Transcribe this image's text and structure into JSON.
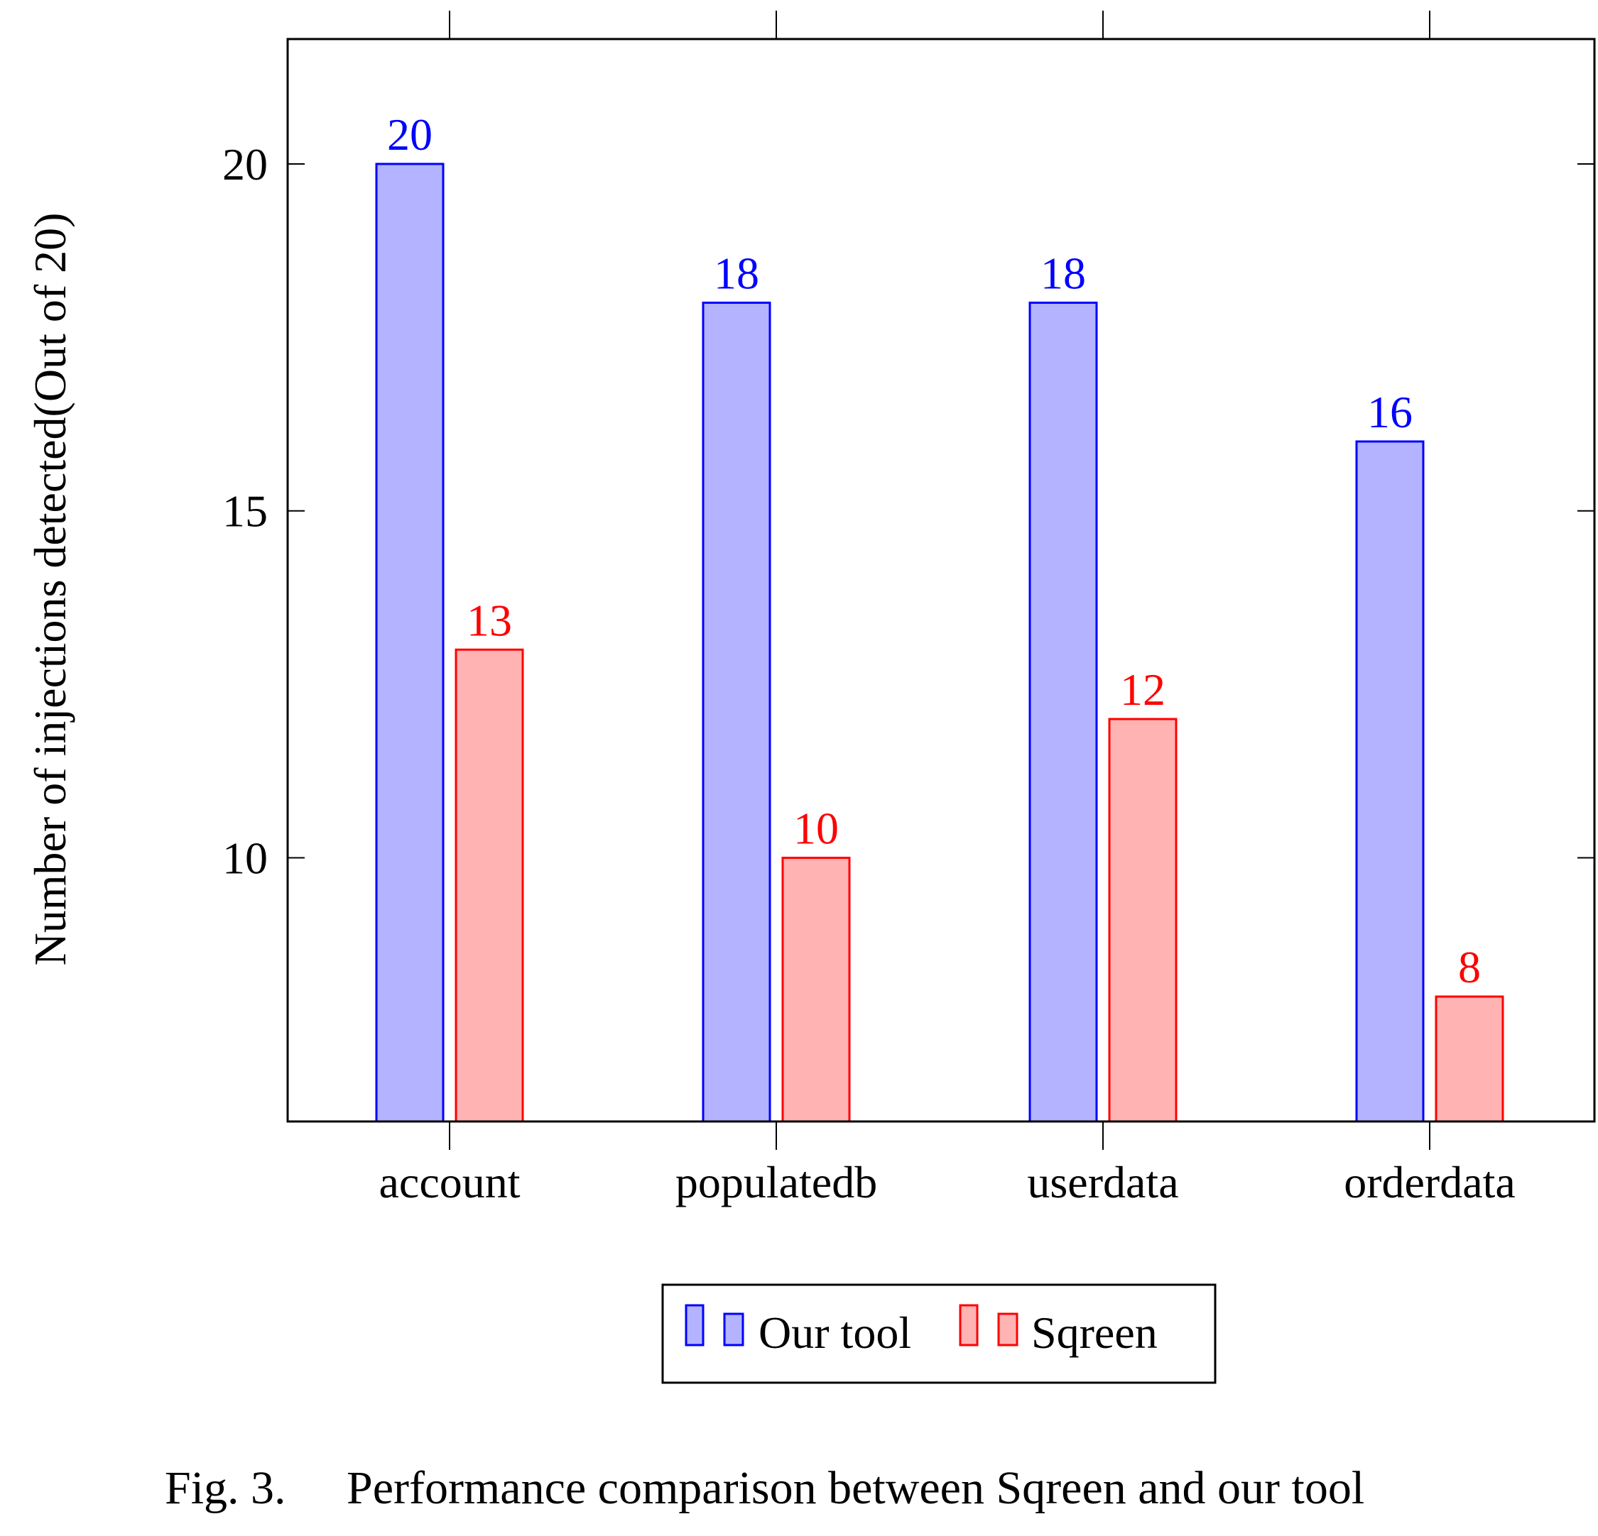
{
  "chart_data": {
    "type": "bar",
    "categories": [
      "account",
      "populatedb",
      "userdata",
      "orderdata"
    ],
    "series": [
      {
        "name": "Our tool",
        "values": [
          20,
          18,
          18,
          16
        ],
        "color": "#0000ff",
        "fill": "#b3b3ff"
      },
      {
        "name": "Sqreen",
        "values": [
          13,
          10,
          12,
          8
        ],
        "color": "#ff0000",
        "fill": "#ffb3b3"
      }
    ],
    "ylabel": "Number of injections detected(Out of 20)",
    "xlabel": "",
    "ylim": [
      6.2,
      21.8
    ],
    "yticks": [
      10,
      15,
      20
    ],
    "ytick_labels": [
      "10",
      "15",
      "20"
    ],
    "legend_position": "bottom-center",
    "grid": false
  },
  "caption": {
    "prefix": "Fig. 3.",
    "text": "Performance comparison between Sqreen and our tool"
  }
}
